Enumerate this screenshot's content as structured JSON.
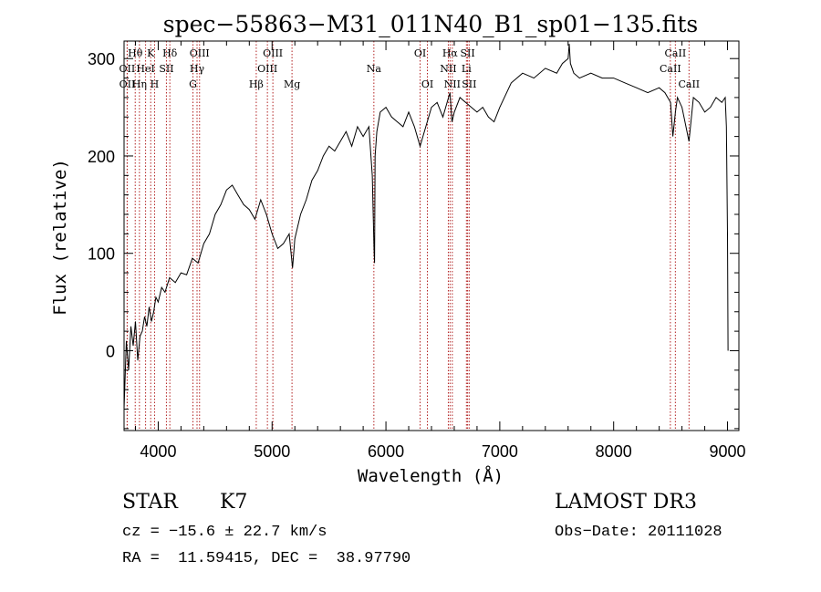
{
  "chart_data": {
    "type": "line",
    "title": "spec−55863−M31_011N40_B1_sp01−135.fits",
    "xlabel": "Wavelength (Å)",
    "ylabel": "Flux (relative)",
    "xlim": [
      3700,
      9100
    ],
    "ylim": [
      -82,
      318
    ],
    "xticks": [
      4000,
      5000,
      6000,
      7000,
      8000,
      9000
    ],
    "yticks": [
      0,
      100,
      200,
      300
    ],
    "grid": false,
    "line_color": "#000000",
    "marker_color": "#b22222",
    "series": [
      {
        "x": [
          3700,
          3720,
          3740,
          3760,
          3780,
          3800,
          3820,
          3840,
          3860,
          3880,
          3900,
          3920,
          3940,
          3960,
          3980,
          4000,
          4030,
          4060,
          4100,
          4150,
          4200,
          4250,
          4300,
          4350,
          4400,
          4450,
          4500,
          4550,
          4600,
          4650,
          4700,
          4750,
          4800,
          4850,
          4900,
          4950,
          5000,
          5050,
          5100,
          5150,
          5180,
          5200,
          5250,
          5300,
          5350,
          5400,
          5450,
          5500,
          5550,
          5600,
          5650,
          5700,
          5750,
          5800,
          5850,
          5880,
          5895,
          5900,
          5905,
          5920,
          5950,
          6000,
          6050,
          6100,
          6150,
          6200,
          6250,
          6300,
          6350,
          6400,
          6450,
          6500,
          6550,
          6563,
          6580,
          6600,
          6650,
          6700,
          6750,
          6800,
          6850,
          6900,
          6950,
          7000,
          7100,
          7200,
          7300,
          7400,
          7500,
          7550,
          7600,
          7610,
          7620,
          7650,
          7700,
          7800,
          7900,
          8000,
          8100,
          8200,
          8300,
          8400,
          8450,
          8500,
          8520,
          8542,
          8560,
          8600,
          8662,
          8700,
          8750,
          8800,
          8850,
          8900,
          8950,
          8980,
          8990,
          9000,
          9005
        ],
        "y": [
          -60,
          10,
          -20,
          25,
          5,
          30,
          -10,
          15,
          20,
          35,
          25,
          45,
          30,
          40,
          55,
          50,
          65,
          60,
          75,
          70,
          80,
          78,
          95,
          90,
          110,
          120,
          140,
          150,
          165,
          170,
          160,
          150,
          145,
          135,
          155,
          140,
          120,
          105,
          110,
          120,
          85,
          115,
          140,
          155,
          175,
          185,
          200,
          210,
          205,
          215,
          225,
          210,
          230,
          220,
          230,
          180,
          105,
          90,
          200,
          225,
          245,
          250,
          240,
          235,
          230,
          245,
          230,
          210,
          230,
          250,
          255,
          240,
          260,
          265,
          235,
          245,
          260,
          255,
          250,
          245,
          250,
          240,
          235,
          250,
          275,
          285,
          280,
          290,
          285,
          295,
          300,
          315,
          295,
          285,
          280,
          285,
          280,
          280,
          275,
          270,
          265,
          270,
          265,
          255,
          220,
          245,
          260,
          250,
          215,
          260,
          255,
          245,
          250,
          260,
          255,
          260,
          230,
          120,
          0
        ]
      }
    ],
    "line_markers": [
      {
        "x": 3727,
        "label": "OII",
        "row": 2
      },
      {
        "x": 3728,
        "label": "OII",
        "row": 3
      },
      {
        "x": 3798,
        "label": "Hθ",
        "row": 1
      },
      {
        "x": 3835,
        "label": "Hη",
        "row": 3
      },
      {
        "x": 3889,
        "label": "HeI",
        "row": 2
      },
      {
        "x": 3934,
        "label": "K",
        "row": 1
      },
      {
        "x": 3968,
        "label": "H",
        "row": 3
      },
      {
        "x": 4072,
        "label": "SII",
        "row": 2
      },
      {
        "x": 4102,
        "label": "Hδ",
        "row": 1
      },
      {
        "x": 4305,
        "label": "G",
        "row": 3
      },
      {
        "x": 4341,
        "label": "Hγ",
        "row": 2
      },
      {
        "x": 4363,
        "label": "OIII",
        "row": 1
      },
      {
        "x": 4861,
        "label": "Hβ",
        "row": 3
      },
      {
        "x": 4959,
        "label": "OIII",
        "row": 2
      },
      {
        "x": 5007,
        "label": "OIII",
        "row": 1
      },
      {
        "x": 5175,
        "label": "Mg",
        "row": 3
      },
      {
        "x": 5894,
        "label": "Na",
        "row": 2
      },
      {
        "x": 6300,
        "label": "OI",
        "row": 1
      },
      {
        "x": 6364,
        "label": "OI",
        "row": 3
      },
      {
        "x": 6548,
        "label": "NII",
        "row": 2
      },
      {
        "x": 6563,
        "label": "Hα",
        "row": 1
      },
      {
        "x": 6583,
        "label": "NII",
        "row": 3
      },
      {
        "x": 6707,
        "label": "Li",
        "row": 2
      },
      {
        "x": 6717,
        "label": "SII",
        "row": 1
      },
      {
        "x": 6731,
        "label": "SII",
        "row": 3
      },
      {
        "x": 8498,
        "label": "CaII",
        "row": 2
      },
      {
        "x": 8542,
        "label": "CaII",
        "row": 1
      },
      {
        "x": 8662,
        "label": "CaII",
        "row": 3
      }
    ]
  },
  "info": {
    "object_class": "STAR",
    "subclass": "K7",
    "survey": "LAMOST DR3",
    "redshift_line": "cz = −15.6 ± 22.7 km/s",
    "obs_date_line": "Obs−Date: 20111028",
    "coords_line": "RA =  11.59415, DEC =  38.97790"
  }
}
